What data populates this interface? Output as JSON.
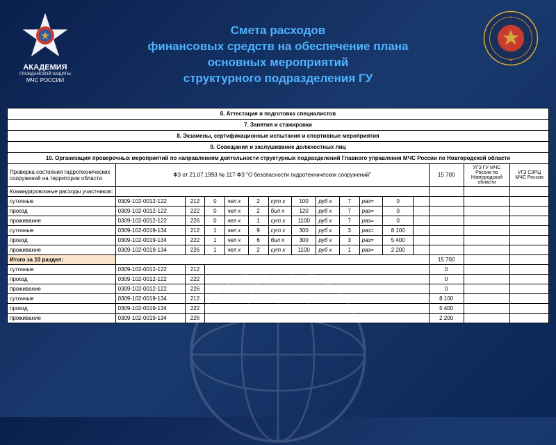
{
  "title": {
    "line1": "Смета расходов",
    "line2": "финансовых средств на обеспечение плана",
    "line3": "основных мероприятий",
    "line4": "структурного подразделения ГУ"
  },
  "academy": {
    "line1": "АКАДЕМИЯ",
    "line2": "ГРАЖДАНСКОЙ ЗАЩИТЫ",
    "line3": "МЧС РОССИИ"
  },
  "sections": {
    "s6": "6. Аттестация и подготовка специалистов",
    "s7": "7. Занятия и стажировки",
    "s8": "8. Экзамены, сертификационные испытания и спортивные мероприятия",
    "s9": "9. Совещания и заслушивание должностных лиц",
    "s10": "10. Организация проверочных мероприятий по направлениям деятельности структурных подразделений Главного управления МЧС России по Новгородской области"
  },
  "cols": {
    "desc": "Проверка состояния гидротехнических сооружений на территории области",
    "ref": "ФЗ от 21.07.1993 № 117-ФЗ \"О безопасности гидротехнических сооружений\"",
    "org1": "УГЗ ГУ МЧС России по Новгородской области",
    "org2": "УГЗ СЗРЦ МЧС России"
  },
  "labels": {
    "kom": "Командировочные расходы участников:",
    "sut": "суточные",
    "pro": "проезд",
    "prj": "проживание",
    "itog": "Итого за 10 раздел:",
    "chel": "чел х",
    "sutx": "сут х",
    "bilx": "бил х",
    "rub": "руб х",
    "raz": "раз="
  },
  "total_top": "15 700",
  "rows": [
    {
      "d": "sut",
      "c": "0309-102-0012-122",
      "a": "212",
      "b": "0",
      "u": "чел х",
      "v": "2",
      "w": "сут х",
      "x": "100",
      "y": "руб х",
      "z": "7",
      "r": "раз=",
      "t": "0"
    },
    {
      "d": "pro",
      "c": "0309-102-0012-122",
      "a": "222",
      "b": "0",
      "u": "чел х",
      "v": "2",
      "w": "бил х",
      "x": "120",
      "y": "руб х",
      "z": "7",
      "r": "раз=",
      "t": "0"
    },
    {
      "d": "prj",
      "c": "0309-102-0012-122",
      "a": "226",
      "b": "0",
      "u": "чел х",
      "v": "1",
      "w": "сут х",
      "x": "1100",
      "y": "руб х",
      "z": "7",
      "r": "раз=",
      "t": "0"
    },
    {
      "d": "sut",
      "c": "0309-102-0019-134",
      "a": "212",
      "b": "1",
      "u": "чел х",
      "v": "9",
      "w": "сут х",
      "x": "300",
      "y": "руб х",
      "z": "3",
      "r": "раз=",
      "t": "8 100"
    },
    {
      "d": "pro",
      "c": "0309-102-0019-134",
      "a": "222",
      "b": "1",
      "u": "чел х",
      "v": "6",
      "w": "бил х",
      "x": "300",
      "y": "руб х",
      "z": "3",
      "r": "раз=",
      "t": "5 400"
    },
    {
      "d": "prj",
      "c": "0309-102-0019-134",
      "a": "226",
      "b": "1",
      "u": "чел х",
      "v": "2",
      "w": "сут х",
      "x": "1100",
      "y": "руб х",
      "z": "1",
      "r": "раз=",
      "t": "2 200"
    }
  ],
  "itog_total": "15 700",
  "rows2": [
    {
      "d": "sut",
      "c": "0309-102-0012-122",
      "a": "212",
      "t": "0"
    },
    {
      "d": "pro",
      "c": "0309-102-0012-122",
      "a": "222",
      "t": "0"
    },
    {
      "d": "prj",
      "c": "0309-102-0012-122",
      "a": "226",
      "t": "0"
    },
    {
      "d": "sut",
      "c": "0309-102-0019-134",
      "a": "212",
      "t": "8 100"
    },
    {
      "d": "pro",
      "c": "0309-102-0019-134",
      "a": "222",
      "t": "5 400"
    },
    {
      "d": "prj",
      "c": "0309-102-0019-134",
      "a": "226",
      "t": "2 200"
    }
  ],
  "colors": {
    "title": "#4fb3ff",
    "gold": "#d4a83a",
    "red": "#c83b2f",
    "navy": "#1a3a6e"
  }
}
